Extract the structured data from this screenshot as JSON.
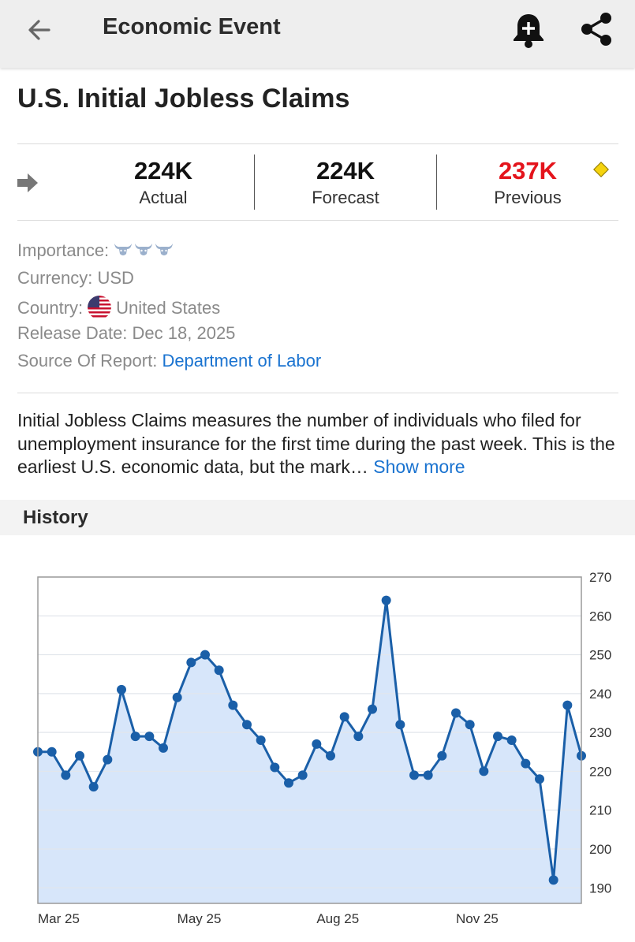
{
  "appbar": {
    "title": "Economic Event",
    "back_icon": "arrow-left-icon",
    "bell_icon": "bell-plus-icon",
    "share_icon": "share-icon"
  },
  "event": {
    "title": "U.S. Initial Jobless Claims",
    "trend_icon": "arrow-right-icon",
    "actual": {
      "value": "224K",
      "label": "Actual"
    },
    "forecast": {
      "value": "224K",
      "label": "Forecast"
    },
    "previous": {
      "value": "237K",
      "label": "Previous",
      "color": "#e4141c"
    },
    "revision_marker_color": "#f5d30e"
  },
  "details": {
    "importance_label": "Importance:",
    "importance_level": 3,
    "importance_icon": "bull-icon",
    "currency_label": "Currency:",
    "currency_value": "USD",
    "country_label": "Country:",
    "country_value": "United States",
    "country_flag_icon": "us-flag-icon",
    "release_label": "Release Date:",
    "release_value": "Dec 18, 2025",
    "source_label": "Source Of Report:",
    "source_value": "Department of Labor"
  },
  "description": {
    "text": "Initial Jobless Claims measures the number of individuals who filed for unemployment insurance for the first time during the past week. This is the earliest U.S. economic data, but the mark…",
    "show_more": "Show more"
  },
  "history": {
    "label": "History"
  },
  "colors": {
    "accent": "#1a73d0",
    "line": "#1a5fa8",
    "fill": "#d7e6fa"
  },
  "chart_data": {
    "type": "area",
    "title": "",
    "xlabel": "",
    "ylabel": "",
    "ylim": [
      186,
      270
    ],
    "y_ticks": [
      190,
      200,
      210,
      220,
      230,
      240,
      250,
      260,
      270
    ],
    "x_tick_labels": [
      "Mar 25",
      "May 25",
      "Aug 25",
      "Nov 25"
    ],
    "x_tick_index": [
      0,
      10,
      20,
      30
    ],
    "y_axis_side": "right",
    "grid": true,
    "values": [
      225,
      225,
      219,
      224,
      216,
      223,
      241,
      229,
      229,
      226,
      239,
      248,
      250,
      246,
      237,
      232,
      228,
      221,
      217,
      219,
      227,
      224,
      234,
      229,
      236,
      264,
      232,
      219,
      219,
      224,
      235,
      232,
      220,
      229,
      228,
      222,
      218,
      192,
      237,
      224
    ]
  }
}
